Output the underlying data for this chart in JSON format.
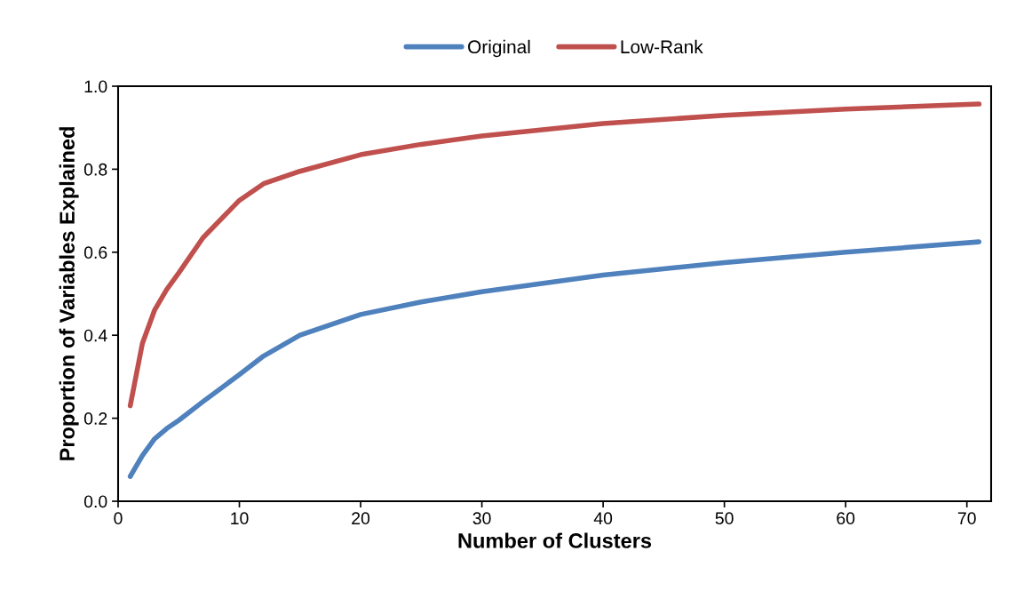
{
  "chart_data": {
    "type": "line",
    "xlabel": "Number of Clusters",
    "ylabel": "Proportion of Variables Explained",
    "x": [
      1,
      2,
      3,
      4,
      5,
      7,
      10,
      12,
      15,
      20,
      25,
      30,
      40,
      50,
      60,
      71
    ],
    "series": [
      {
        "name": "Original",
        "color": "#4f81bd",
        "values": [
          0.06,
          0.11,
          0.15,
          0.175,
          0.195,
          0.24,
          0.305,
          0.35,
          0.4,
          0.45,
          0.48,
          0.505,
          0.545,
          0.575,
          0.6,
          0.625
        ]
      },
      {
        "name": "Low-Rank",
        "color": "#c0504d",
        "values": [
          0.23,
          0.38,
          0.46,
          0.51,
          0.55,
          0.635,
          0.725,
          0.765,
          0.795,
          0.835,
          0.86,
          0.88,
          0.91,
          0.93,
          0.945,
          0.957
        ]
      }
    ],
    "xlim": [
      0,
      72
    ],
    "xticks": [
      0,
      10,
      20,
      30,
      40,
      50,
      60,
      70
    ],
    "ylim": [
      0,
      1
    ],
    "yticks": [
      {
        "value": 0,
        "label": "0.0"
      },
      {
        "value": 0.2,
        "label": "0.2"
      },
      {
        "value": 0.4,
        "label": "0.4"
      },
      {
        "value": 0.6,
        "label": "0.6"
      },
      {
        "value": 0.8,
        "label": "0.8"
      },
      {
        "value": 1,
        "label": "1.0"
      }
    ],
    "grid": false,
    "legend": "top",
    "marker": "none",
    "line_style": "solid"
  }
}
